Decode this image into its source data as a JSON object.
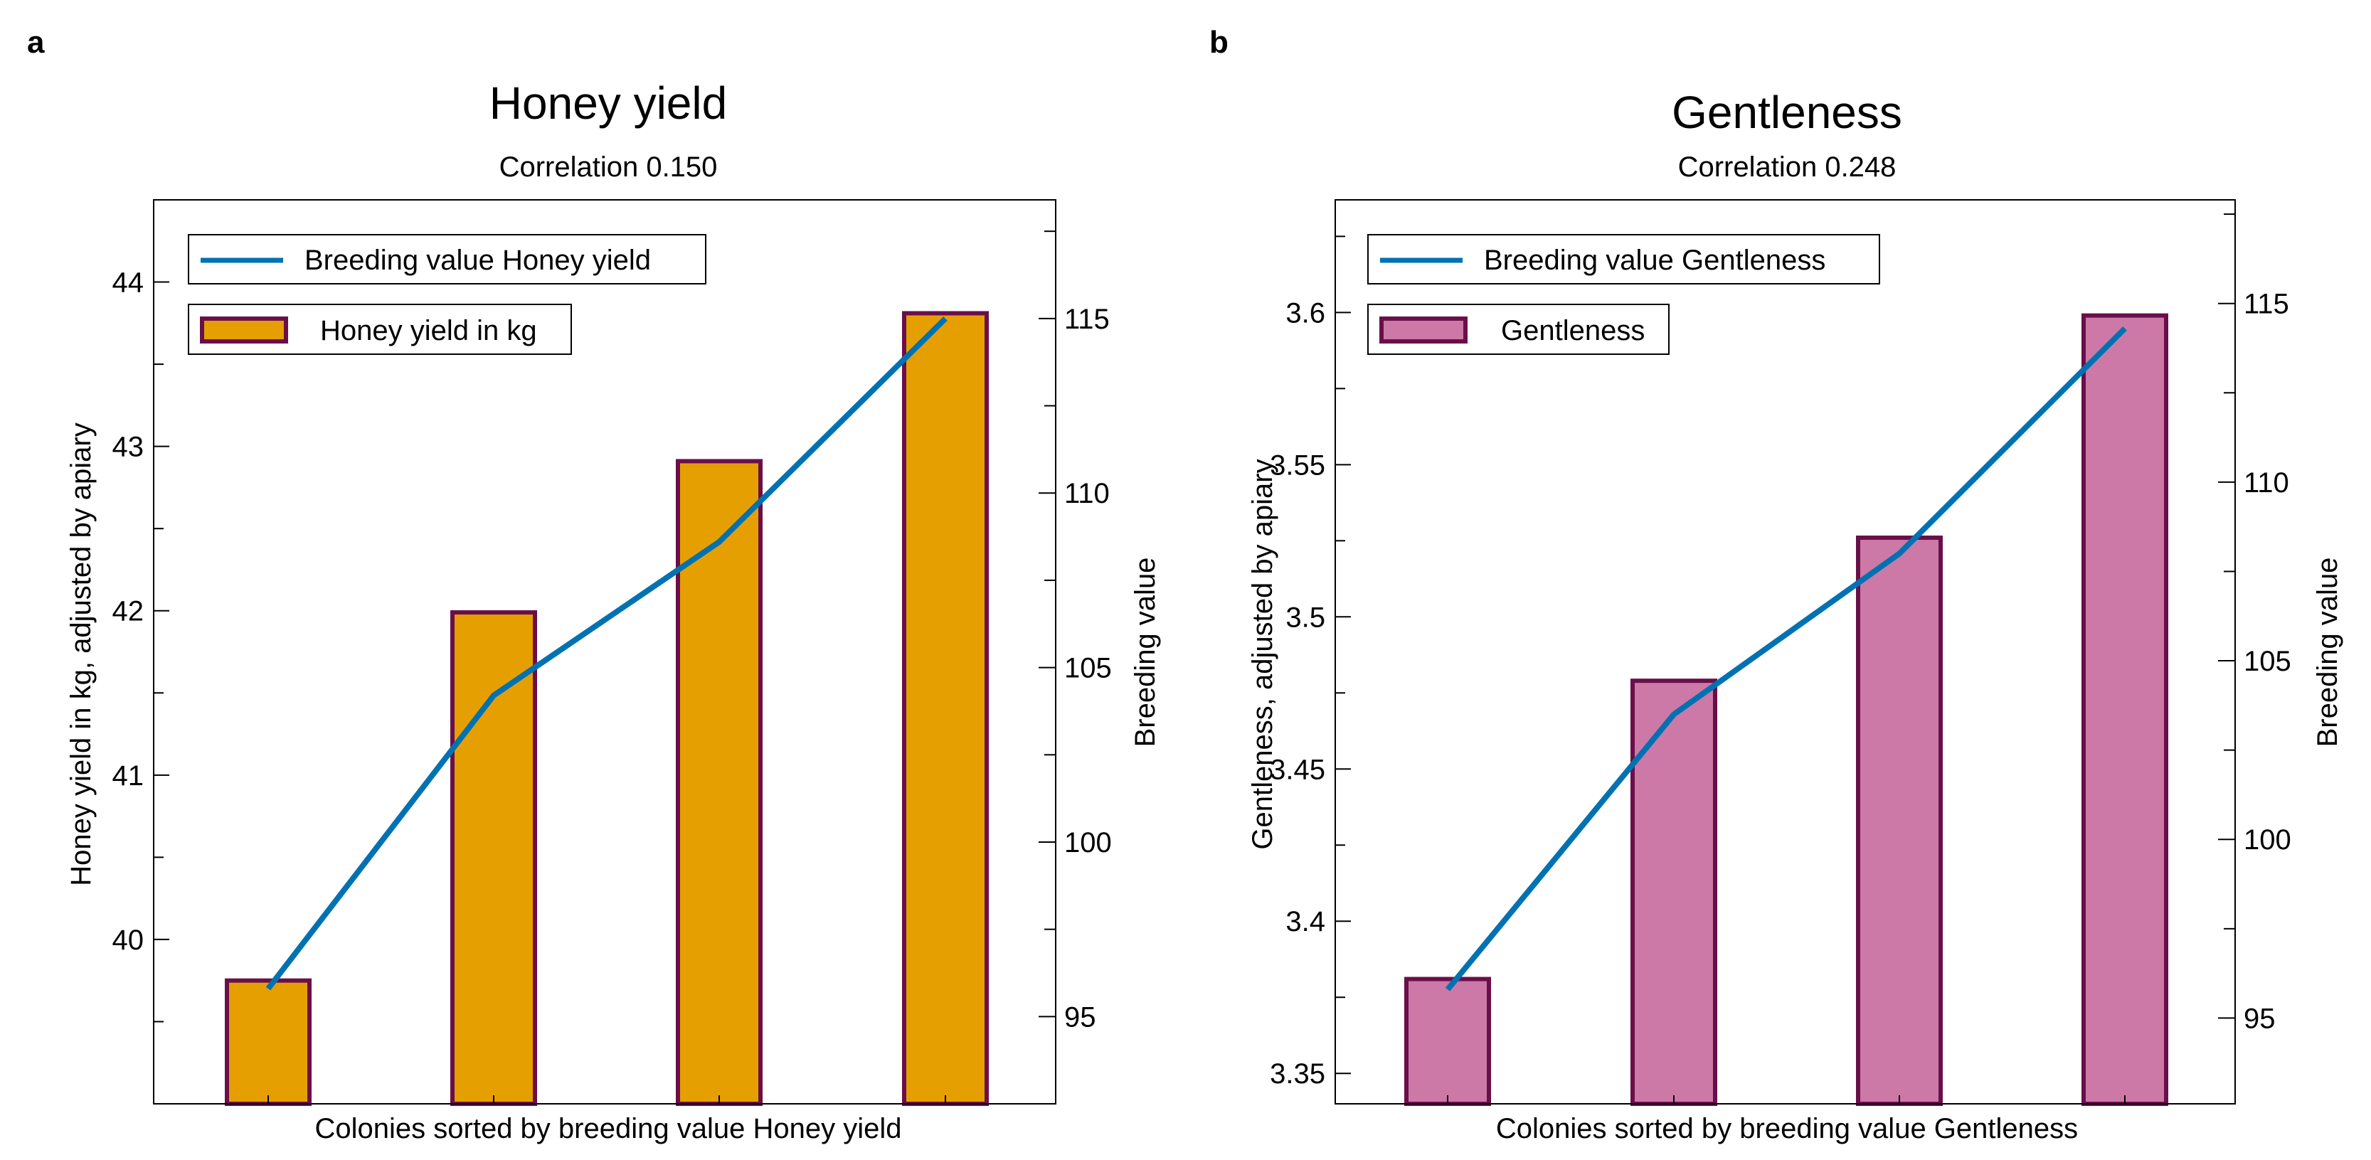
{
  "chart_data": [
    {
      "type": "bar",
      "panel_label": "a",
      "title": "Honey yield",
      "subtitle": "Correlation 0.150",
      "xlabel": "Colonies sorted by breeding value Honey yield",
      "ylabel": "Honey yield in kg, adjusted by apiary",
      "y2label": "Breeding value",
      "categories": [
        "",
        "",
        "",
        ""
      ],
      "ylim": [
        39.0,
        44.5
      ],
      "y2lim": [
        92.5,
        118.4
      ],
      "yticks": [
        40,
        41,
        42,
        43,
        44
      ],
      "y2ticks": [
        95,
        100,
        105,
        110,
        115
      ],
      "bar_color": "#E69F00",
      "edge_color": "#6A0F4A",
      "line_color": "#0072B2",
      "series": [
        {
          "name": "Honey yield in kg",
          "kind": "bar",
          "axis": "left",
          "values": [
            39.75,
            41.99,
            42.91,
            43.81
          ]
        },
        {
          "name": "Breeding value Honey yield",
          "kind": "line",
          "axis": "right",
          "values": [
            95.8,
            104.2,
            108.6,
            115.0
          ]
        }
      ],
      "legend_position": "top-left"
    },
    {
      "type": "bar",
      "panel_label": "b",
      "title": "Gentleness",
      "subtitle": "Correlation 0.248",
      "xlabel": "Colonies sorted by breeding value Gentleness",
      "ylabel": "Gentleness, adjusted by apiary",
      "y2label": "Breeding value",
      "categories": [
        "",
        "",
        "",
        ""
      ],
      "ylim": [
        3.34,
        3.637
      ],
      "y2lim": [
        92.6,
        117.9
      ],
      "yticks": [
        3.35,
        3.4,
        3.45,
        3.5,
        3.55,
        3.6
      ],
      "yticklabels": [
        "3.35",
        "3.4",
        "3.45",
        "3.5",
        "3.55",
        "3.6"
      ],
      "y2ticks": [
        95,
        100,
        105,
        110,
        115
      ],
      "bar_color": "#CC79A7",
      "edge_color": "#6A0F4A",
      "line_color": "#0072B2",
      "series": [
        {
          "name": "Gentleness",
          "kind": "bar",
          "axis": "left",
          "values": [
            3.381,
            3.479,
            3.526,
            3.599
          ]
        },
        {
          "name": "Breeding value Gentleness",
          "kind": "line",
          "axis": "right",
          "values": [
            95.8,
            103.5,
            108.0,
            114.3
          ]
        }
      ],
      "legend_position": "top-left"
    }
  ]
}
